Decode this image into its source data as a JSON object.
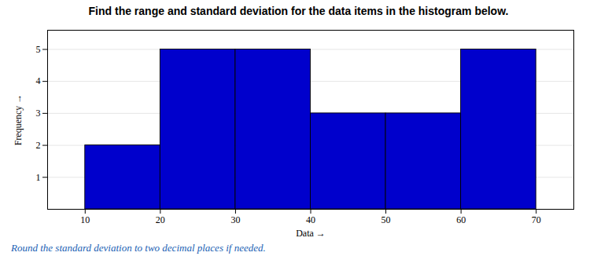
{
  "chart_data": {
    "type": "histogram",
    "title": "Find the range and standard deviation for the data items in the histogram below.",
    "subtitle": "Round the standard deviation to two decimal places if needed.",
    "bins": [
      10,
      20,
      30,
      40,
      50,
      60,
      70
    ],
    "values": [
      2,
      5,
      5,
      3,
      3,
      5
    ],
    "color": "#0000CC",
    "xlabel": "Data",
    "ylabel": "Frequency",
    "xlim": [
      5,
      75
    ],
    "ylim": [
      0,
      5.6
    ],
    "xticks": [
      10,
      20,
      30,
      40,
      50,
      60,
      70
    ],
    "yticks": [
      1,
      2,
      3,
      4,
      5
    ],
    "grid": true
  }
}
